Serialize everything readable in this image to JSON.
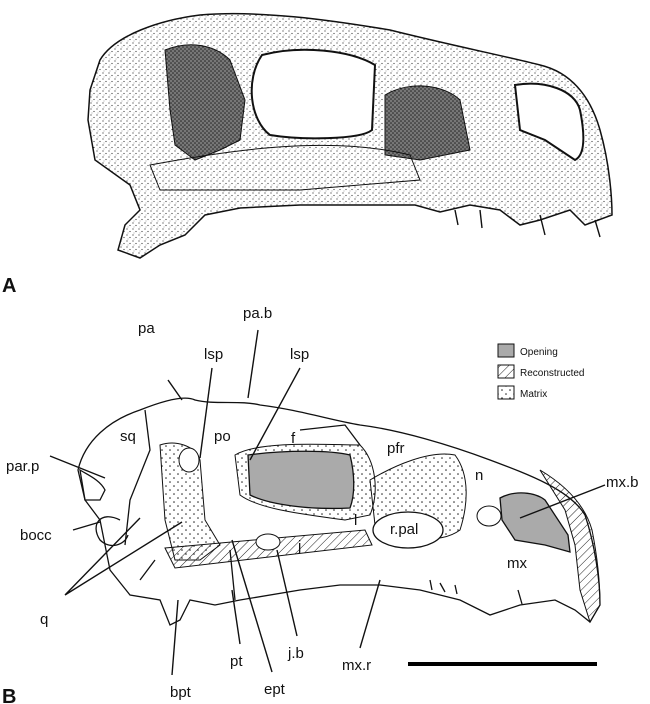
{
  "panels": [
    {
      "label": "A"
    },
    {
      "label": "B"
    }
  ],
  "legend": [
    {
      "label": "Opening"
    },
    {
      "label": "Reconstructed"
    },
    {
      "label": "Matrix"
    }
  ],
  "annotations": [
    "pa",
    "pa.b",
    "lsp",
    "lsp",
    "po",
    "sq",
    "f",
    "pfr",
    "par.p",
    "n",
    "mx.b",
    "bocc",
    "l",
    "r.pal",
    "j",
    "mx",
    "q",
    "pt",
    "j.b",
    "mx.r",
    "ept",
    "bpt"
  ]
}
